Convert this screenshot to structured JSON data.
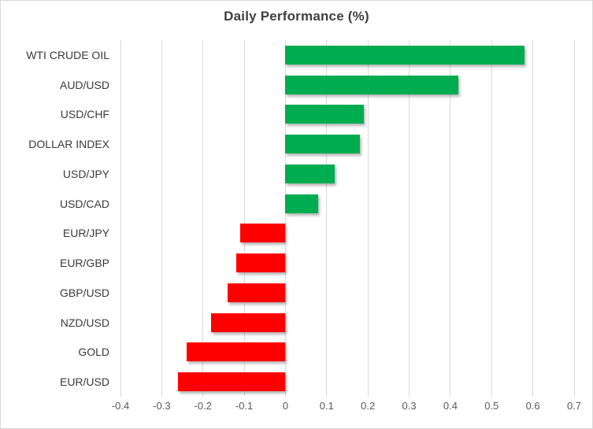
{
  "chart_data": {
    "type": "bar",
    "orientation": "horizontal",
    "title": "Daily Performance (%)",
    "categories": [
      "WTI CRUDE OIL",
      "AUD/USD",
      "USD/CHF",
      "DOLLAR INDEX",
      "USD/JPY",
      "USD/CAD",
      "EUR/JPY",
      "EUR/GBP",
      "GBP/USD",
      "NZD/USD",
      "GOLD",
      "EUR/USD"
    ],
    "values": [
      0.58,
      0.42,
      0.19,
      0.18,
      0.12,
      0.08,
      -0.11,
      -0.12,
      -0.14,
      -0.18,
      -0.24,
      -0.26
    ],
    "xlabel": "",
    "ylabel": "",
    "xlim": [
      -0.4,
      0.7
    ],
    "x_ticks": [
      -0.4,
      -0.3,
      -0.2,
      -0.1,
      0,
      0.1,
      0.2,
      0.3,
      0.4,
      0.5,
      0.6,
      0.7
    ],
    "x_tick_labels": [
      "-0.4",
      "-0.3",
      "-0.2",
      "-0.1",
      "0",
      "0.1",
      "0.2",
      "0.3",
      "0.4",
      "0.5",
      "0.6",
      "0.7"
    ],
    "grid": true,
    "legend": "none",
    "colors": {
      "positive_bar": "#00AC50",
      "negative_bar": "#FF0000",
      "gridline": "#D9D9D9",
      "chart_border": "#D9D9D9",
      "title_text": "#3F3F3F",
      "category_text": "#3A3A3A",
      "tick_text": "#595959",
      "background": "#FFFFFF"
    }
  }
}
